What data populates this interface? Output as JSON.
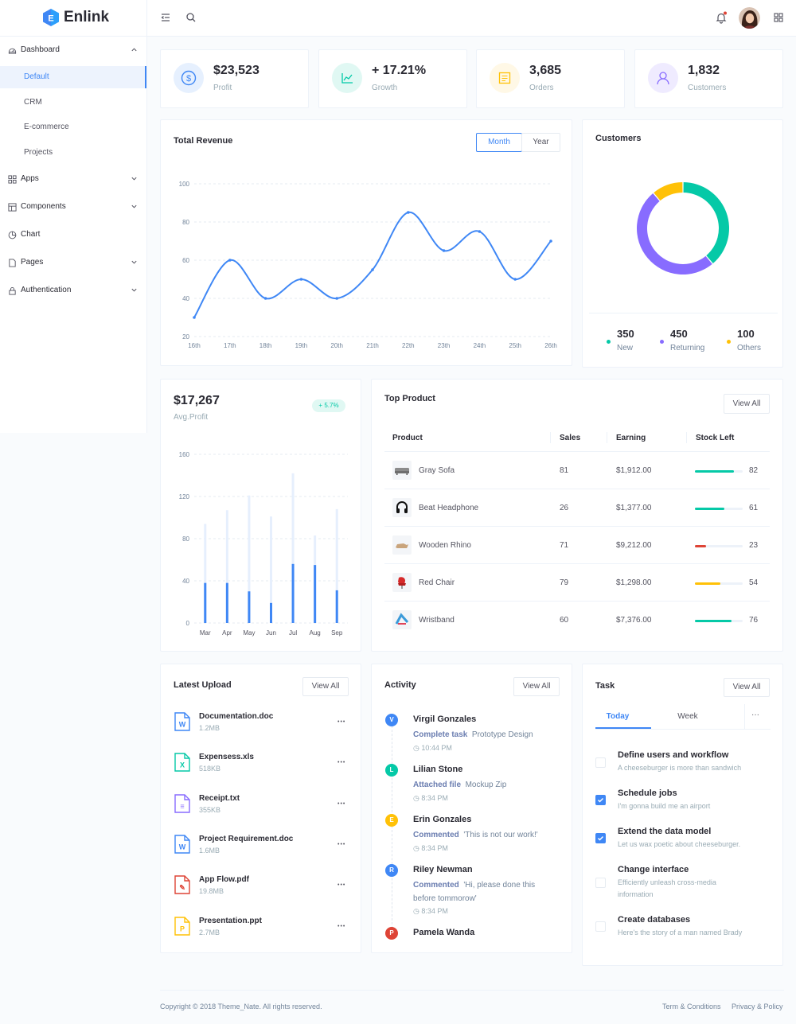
{
  "app": {
    "logo_letter": "E",
    "name": "Enlink",
    "brand_color": "#3f87f5"
  },
  "header": {
    "menu_icon": "menu-fold-icon",
    "search_icon": "search-icon",
    "bell_icon": "bell-icon",
    "apps_icon": "apps-grid-icon",
    "notification_dot_color": "#de4436"
  },
  "sidebar": {
    "dashboard": "Dashboard",
    "sub_items": [
      "Default",
      "CRM",
      "E-commerce",
      "Projects"
    ],
    "apps": "Apps",
    "components": "Components",
    "chart": "Chart",
    "pages": "Pages",
    "authentication": "Authentication"
  },
  "stats": [
    {
      "value": "$23,523",
      "label": "Profit",
      "icon": "dollar-icon",
      "color": "#3f87f5"
    },
    {
      "value": "+ 17.21%",
      "label": "Growth",
      "icon": "line-chart-icon",
      "color": "#00c9a7"
    },
    {
      "value": "3,685",
      "label": "Orders",
      "icon": "profile-icon",
      "color": "#ffc107"
    },
    {
      "value": "1,832",
      "label": "Customers",
      "icon": "user-icon",
      "color": "#886cff"
    }
  ],
  "revenue": {
    "title": "Total Revenue",
    "month_label": "Month",
    "year_label": "Year",
    "chart_data": {
      "type": "line",
      "title": "Total Revenue",
      "x": [
        "16th",
        "17th",
        "18th",
        "19th",
        "20th",
        "21th",
        "22th",
        "23th",
        "24th",
        "25th",
        "26th"
      ],
      "series": [
        {
          "values": [
            30,
            60,
            40,
            50,
            40,
            55,
            85,
            65,
            75,
            50,
            70
          ]
        }
      ],
      "ylim": [
        20,
        100
      ],
      "yticks": [
        "20",
        "40",
        "60",
        "80",
        "100"
      ],
      "grid": true,
      "color": "#3f87f5"
    }
  },
  "customers": {
    "title": "Customers",
    "chart_data": {
      "type": "pie",
      "categories": [
        "New",
        "Returning",
        "Others"
      ],
      "values": [
        350,
        450,
        100
      ],
      "colors": [
        "#05c9a7",
        "#886cff",
        "#ffc107"
      ]
    },
    "legend": [
      {
        "value": "350",
        "label": "New",
        "color": "#05c9a7"
      },
      {
        "value": "450",
        "label": "Returning",
        "color": "#886cff"
      },
      {
        "value": "100",
        "label": "Others",
        "color": "#ffc107"
      }
    ]
  },
  "avg_profit": {
    "value": "$17,267",
    "label": "Avg.Profit",
    "badge": "+ 5.7%",
    "chart_data": {
      "type": "bar",
      "categories": [
        "Mar",
        "Apr",
        "May",
        "Jun",
        "Jul",
        "Aug",
        "Sep"
      ],
      "series": [
        {
          "values": [
            38,
            38,
            30,
            19,
            56,
            55,
            31
          ],
          "color": "#3f87f5"
        },
        {
          "values": [
            94,
            107,
            121,
            101,
            142,
            83,
            108
          ],
          "color": "#e6effd"
        }
      ],
      "ylim": [
        0,
        160
      ],
      "yticks": [
        "0",
        "40",
        "80",
        "120",
        "160"
      ],
      "grid": true
    }
  },
  "top_product": {
    "title": "Top Product",
    "view_all": "View All",
    "columns": [
      "Product",
      "Sales",
      "Earning",
      "Stock Left"
    ],
    "rows": [
      {
        "name": "Gray Sofa",
        "sales": "81",
        "earning": "$1,912.00",
        "stock": "82",
        "stock_pct": 82,
        "color": "#05c9a7",
        "icon": "sofa-icon"
      },
      {
        "name": "Beat Headphone",
        "sales": "26",
        "earning": "$1,377.00",
        "stock": "61",
        "stock_pct": 61,
        "color": "#05c9a7",
        "icon": "headphone-icon"
      },
      {
        "name": "Wooden Rhino",
        "sales": "71",
        "earning": "$9,212.00",
        "stock": "23",
        "stock_pct": 23,
        "color": "#de4436",
        "icon": "rhino-icon"
      },
      {
        "name": "Red Chair",
        "sales": "79",
        "earning": "$1,298.00",
        "stock": "54",
        "stock_pct": 54,
        "color": "#ffc107",
        "icon": "chair-icon"
      },
      {
        "name": "Wristband",
        "sales": "60",
        "earning": "$7,376.00",
        "stock": "76",
        "stock_pct": 76,
        "color": "#05c9a7",
        "icon": "wristband-icon"
      }
    ]
  },
  "latest_upload": {
    "title": "Latest Upload",
    "view_all": "View All",
    "files": [
      {
        "name": "Documentation.doc",
        "size": "1.2MB",
        "type": "W",
        "color": "#3f87f5",
        "icon": "word-file-icon"
      },
      {
        "name": "Expensess.xls",
        "size": "518KB",
        "type": "X",
        "color": "#05c9a7",
        "icon": "excel-file-icon"
      },
      {
        "name": "Receipt.txt",
        "size": "355KB",
        "type": "≡",
        "color": "#886cff",
        "icon": "text-file-icon"
      },
      {
        "name": "Project Requirement.doc",
        "size": "1.6MB",
        "type": "W",
        "color": "#3f87f5",
        "icon": "word-file-icon"
      },
      {
        "name": "App Flow.pdf",
        "size": "19.8MB",
        "type": "✎",
        "color": "#de4436",
        "icon": "pdf-file-icon"
      },
      {
        "name": "Presentation.ppt",
        "size": "2.7MB",
        "type": "P",
        "color": "#ffc107",
        "icon": "ppt-file-icon"
      }
    ]
  },
  "activity": {
    "title": "Activity",
    "view_all": "View All",
    "items": [
      {
        "initial": "V",
        "name": "Virgil Gonzales",
        "action": "Complete task",
        "target": "Prototype Design",
        "time": "10:44 PM",
        "color": "#3f87f5"
      },
      {
        "initial": "L",
        "name": "Lilian Stone",
        "action": "Attached file",
        "target": "Mockup Zip",
        "time": "8:34 PM",
        "color": "#05c9a7"
      },
      {
        "initial": "E",
        "name": "Erin Gonzales",
        "action": "Commented",
        "target": "'This is not our work!'",
        "time": "8:34 PM",
        "color": "#ffc107"
      },
      {
        "initial": "R",
        "name": "Riley Newman",
        "action": "Commented",
        "target": "'Hi, please done this",
        "target2": "before tommorow'",
        "time": "8:34 PM",
        "color": "#3f87f5"
      },
      {
        "initial": "P",
        "name": "Pamela Wanda",
        "color": "#de4436"
      }
    ]
  },
  "task": {
    "title": "Task",
    "view_all": "View All",
    "tab_today": "Today",
    "tab_week": "Week",
    "more": "···",
    "items": [
      {
        "title": "Define users and workflow",
        "desc": "A cheeseburger is more than sandwich",
        "checked": false
      },
      {
        "title": "Schedule jobs",
        "desc": "I'm gonna build me an airport",
        "checked": true
      },
      {
        "title": "Extend the data model",
        "desc": "Let us wax poetic about cheeseburger.",
        "checked": true
      },
      {
        "title": "Change interface",
        "desc": "Efficiently unleash cross-media information",
        "checked": false
      },
      {
        "title": "Create databases",
        "desc": "Here's the story of a man named Brady",
        "checked": false
      }
    ]
  },
  "footer": {
    "copyright": "Copyright © 2018 Theme_Nate. All rights reserved.",
    "terms": "Term & Conditions",
    "privacy": "Privacy & Policy"
  }
}
